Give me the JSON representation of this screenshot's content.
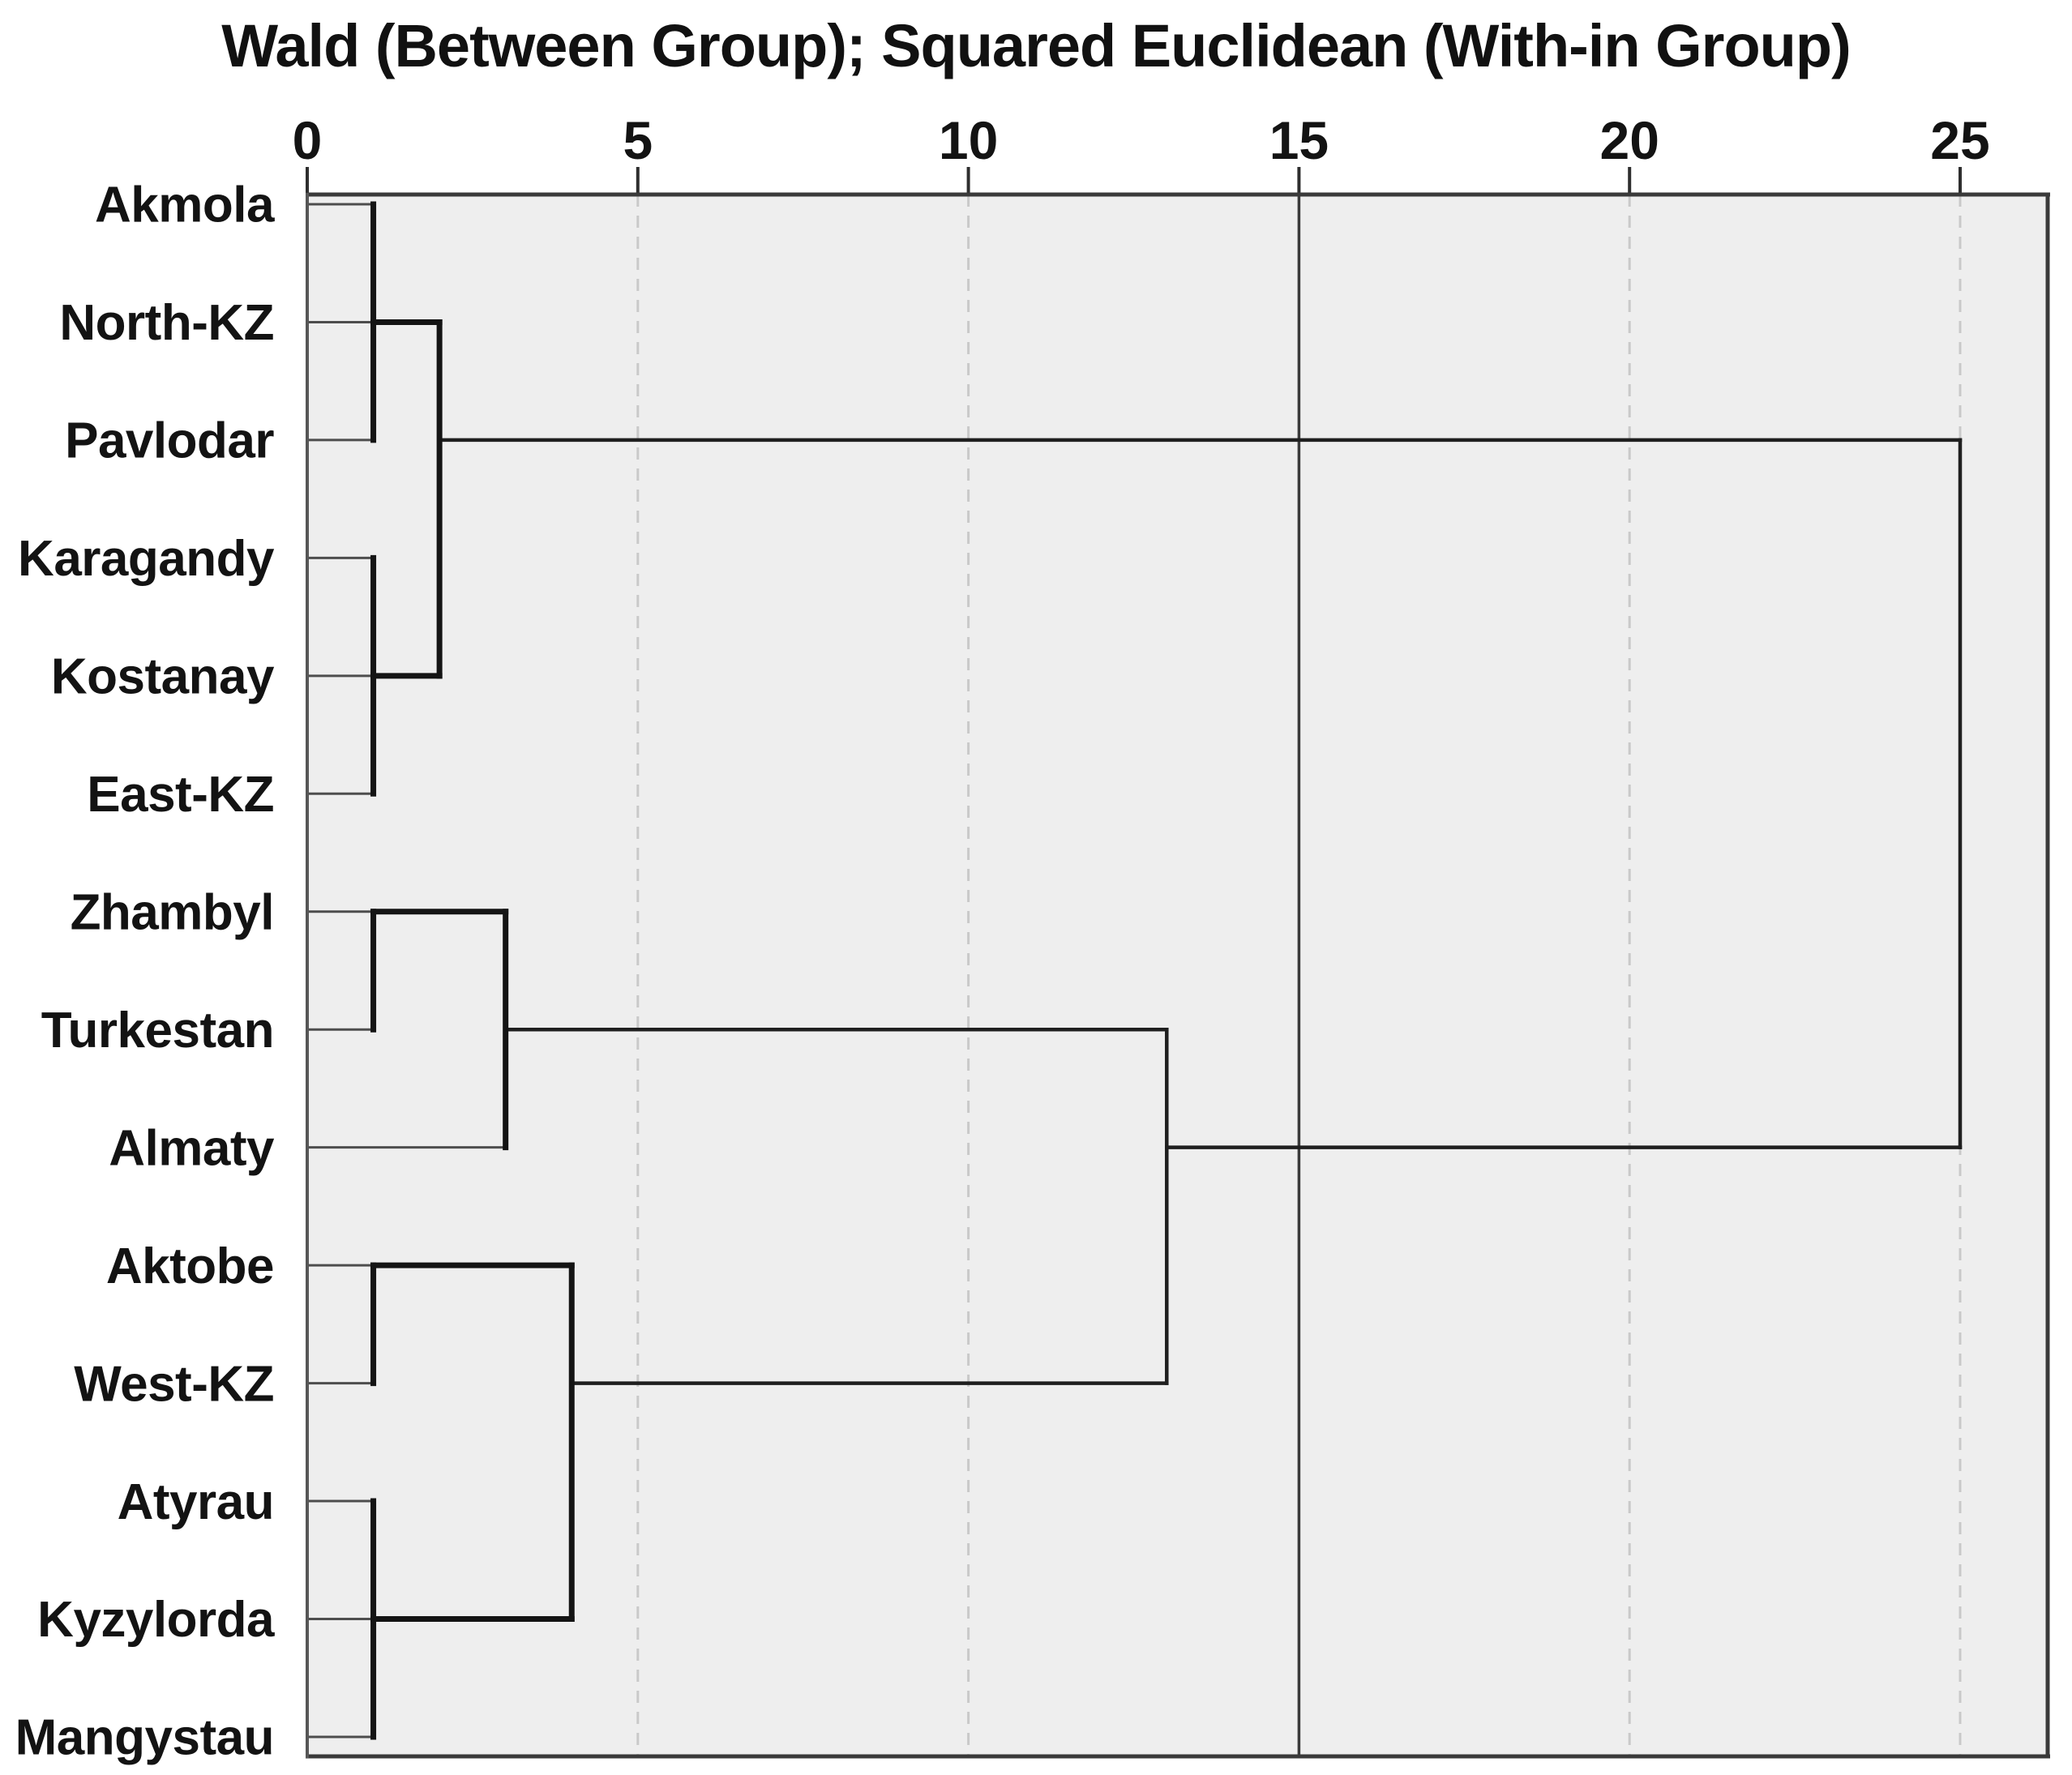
{
  "title": "Wald (Between Group); Squared Euclidean (With-in Group)",
  "colors": {
    "page_bg": "#ffffff",
    "plot_bg": "#eeeeee",
    "leaf_line": "#4d4d4d",
    "inner_line": "#141414",
    "outer_line": "#1f1f1f",
    "grid_dashed": "#c9c9c9",
    "grid_solid": "#3a3a3a",
    "border": "#3a3a3a",
    "axis_left": "#565656",
    "tick": "#2e2e2e",
    "text": "#131313"
  },
  "chart_data": {
    "type": "dendrogram",
    "orientation": "horizontal",
    "title": "Wald (Between Group); Squared Euclidean (With-in Group)",
    "xlim": [
      0,
      25
    ],
    "x_ticks": [
      "0",
      "5",
      "10",
      "15",
      "20",
      "25"
    ],
    "x_tick_values": [
      0,
      5,
      10,
      15,
      20,
      25
    ],
    "grid": {
      "dashed_at": [
        5,
        10,
        20,
        25
      ],
      "solid_at": [
        15
      ]
    },
    "legend": "none",
    "leaves": [
      "Akmola",
      "North-KZ",
      "Pavlodar",
      "Karagandy",
      "Kostanay",
      "East-KZ",
      "Zhambyl",
      "Turkestan",
      "Almaty",
      "Aktobe",
      "West-KZ",
      "Atyrau",
      "Kyzylorda",
      "Mangystau"
    ],
    "merges": [
      {
        "cluster": [
          "Akmola",
          "North-KZ"
        ],
        "height": 1
      },
      {
        "cluster": [
          "Akmola",
          "North-KZ",
          "Pavlodar"
        ],
        "height": 1
      },
      {
        "cluster": [
          "Karagandy",
          "Kostanay"
        ],
        "height": 1
      },
      {
        "cluster": [
          "Karagandy",
          "Kostanay",
          "East-KZ"
        ],
        "height": 1
      },
      {
        "cluster": [
          "Akmola",
          "North-KZ",
          "Pavlodar",
          "Karagandy",
          "Kostanay",
          "East-KZ"
        ],
        "height": 2
      },
      {
        "cluster": [
          "Zhambyl",
          "Turkestan"
        ],
        "height": 1
      },
      {
        "cluster": [
          "Zhambyl",
          "Turkestan",
          "Almaty"
        ],
        "height": 3
      },
      {
        "cluster": [
          "Aktobe",
          "West-KZ"
        ],
        "height": 1
      },
      {
        "cluster": [
          "Atyrau",
          "Kyzylorda"
        ],
        "height": 1
      },
      {
        "cluster": [
          "Atyrau",
          "Kyzylorda",
          "Mangystau"
        ],
        "height": 1
      },
      {
        "cluster": [
          "Aktobe",
          "West-KZ",
          "Atyrau",
          "Kyzylorda",
          "Mangystau"
        ],
        "height": 4
      },
      {
        "cluster": [
          "Zhambyl",
          "Turkestan",
          "Almaty",
          "Aktobe",
          "West-KZ",
          "Atyrau",
          "Kyzylorda",
          "Mangystau"
        ],
        "height": 13
      },
      {
        "cluster": [
          "Akmola",
          "North-KZ",
          "Pavlodar",
          "Karagandy",
          "Kostanay",
          "East-KZ",
          "Zhambyl",
          "Turkestan",
          "Almaty",
          "Aktobe",
          "West-KZ",
          "Atyrau",
          "Kyzylorda",
          "Mangystau"
        ],
        "height": 25
      }
    ],
    "links": {
      "horizontal": [
        {
          "row": 1,
          "from": 0,
          "to": 1,
          "kind": "leaf"
        },
        {
          "row": 2,
          "from": 0,
          "to": 1,
          "kind": "leaf"
        },
        {
          "row": 2,
          "from": 1,
          "to": 2,
          "kind": "inner"
        },
        {
          "row": 3,
          "from": 0,
          "to": 1,
          "kind": "leaf"
        },
        {
          "row": 3,
          "from": 2,
          "to": 25,
          "kind": "outer"
        },
        {
          "row": 4,
          "from": 0,
          "to": 1,
          "kind": "leaf"
        },
        {
          "row": 5,
          "from": 0,
          "to": 1,
          "kind": "leaf"
        },
        {
          "row": 5,
          "from": 1,
          "to": 2,
          "kind": "inner"
        },
        {
          "row": 6,
          "from": 0,
          "to": 1,
          "kind": "leaf"
        },
        {
          "row": 7,
          "from": 0,
          "to": 1,
          "kind": "leaf"
        },
        {
          "row": 7,
          "from": 1,
          "to": 3,
          "kind": "inner"
        },
        {
          "row": 8,
          "from": 0,
          "to": 1,
          "kind": "leaf"
        },
        {
          "row": 8,
          "from": 3,
          "to": 13,
          "kind": "outer"
        },
        {
          "row": 9,
          "from": 0,
          "to": 3,
          "kind": "leaf"
        },
        {
          "row": 9,
          "from": 13,
          "to": 25,
          "kind": "outer"
        },
        {
          "row": 10,
          "from": 0,
          "to": 1,
          "kind": "leaf"
        },
        {
          "row": 10,
          "from": 1,
          "to": 4,
          "kind": "inner"
        },
        {
          "row": 11,
          "from": 0,
          "to": 1,
          "kind": "leaf"
        },
        {
          "row": 11,
          "from": 4,
          "to": 13,
          "kind": "outer"
        },
        {
          "row": 12,
          "from": 0,
          "to": 1,
          "kind": "leaf"
        },
        {
          "row": 13,
          "from": 0,
          "to": 1,
          "kind": "leaf"
        },
        {
          "row": 13,
          "from": 1,
          "to": 4,
          "kind": "inner"
        },
        {
          "row": 14,
          "from": 0,
          "to": 1,
          "kind": "leaf"
        }
      ],
      "vertical": [
        {
          "at": 1,
          "row_from": 1,
          "row_to": 3,
          "kind": "inner"
        },
        {
          "at": 1,
          "row_from": 4,
          "row_to": 6,
          "kind": "inner"
        },
        {
          "at": 2,
          "row_from": 2,
          "row_to": 5,
          "kind": "inner"
        },
        {
          "at": 1,
          "row_from": 7,
          "row_to": 8,
          "kind": "inner"
        },
        {
          "at": 3,
          "row_from": 7,
          "row_to": 9,
          "kind": "inner"
        },
        {
          "at": 1,
          "row_from": 10,
          "row_to": 11,
          "kind": "inner"
        },
        {
          "at": 1,
          "row_from": 12,
          "row_to": 14,
          "kind": "inner"
        },
        {
          "at": 4,
          "row_from": 10,
          "row_to": 13,
          "kind": "inner"
        },
        {
          "at": 13,
          "row_from": 8,
          "row_to": 11,
          "kind": "outer"
        },
        {
          "at": 25,
          "row_from": 3,
          "row_to": 9,
          "kind": "outer"
        }
      ]
    }
  }
}
